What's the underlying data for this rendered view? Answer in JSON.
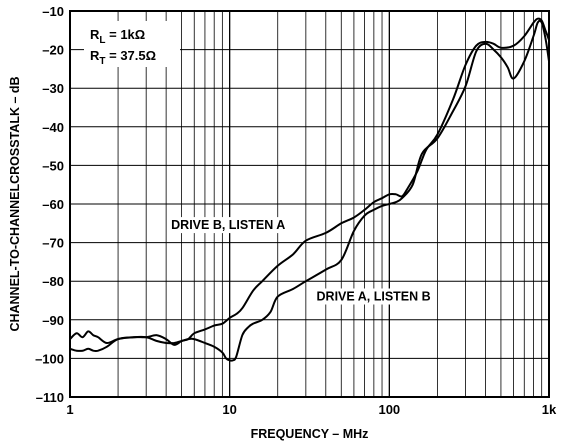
{
  "chart_data": {
    "type": "line",
    "title": "",
    "xlabel": "FREQUENCY – MHz",
    "ylabel": "CHANNEL-TO-CHANNELCROSSTALK – dB",
    "xscale": "log",
    "xlim": [
      1,
      1000
    ],
    "ylim": [
      -110,
      -10
    ],
    "grid": true,
    "x_ticks": [
      {
        "value": 1,
        "label": "1"
      },
      {
        "value": 10,
        "label": "10"
      },
      {
        "value": 100,
        "label": "100"
      },
      {
        "value": 1000,
        "label": "1k"
      }
    ],
    "y_ticks": [
      {
        "value": -10,
        "label": "–10"
      },
      {
        "value": -20,
        "label": "–20"
      },
      {
        "value": -30,
        "label": "–30"
      },
      {
        "value": -40,
        "label": "–40"
      },
      {
        "value": -50,
        "label": "–50"
      },
      {
        "value": -60,
        "label": "–60"
      },
      {
        "value": -70,
        "label": "–70"
      },
      {
        "value": -80,
        "label": "–80"
      },
      {
        "value": -90,
        "label": "–90"
      },
      {
        "value": -100,
        "label": "–100"
      },
      {
        "value": -110,
        "label": "–110"
      }
    ],
    "conditions": {
      "rl": {
        "sym": "R",
        "sub": "L",
        "rest": " = 1kΩ"
      },
      "rt": {
        "sym": "R",
        "sub": "T",
        "rest": " = 37.5Ω"
      }
    },
    "series": [
      {
        "name": "DRIVE B, LISTEN A",
        "x": [
          1,
          1.1,
          1.2,
          1.3,
          1.4,
          1.5,
          1.7,
          2,
          2.5,
          3,
          3.5,
          4,
          4.5,
          5,
          5.5,
          6,
          7,
          8,
          9,
          10,
          11,
          12,
          14,
          16,
          20,
          25,
          30,
          40,
          50,
          60,
          70,
          80,
          90,
          100,
          110,
          120,
          130,
          150,
          170,
          200,
          250,
          300,
          350,
          400,
          450,
          500,
          600,
          700,
          800,
          850,
          900,
          950,
          1000
        ],
        "y": [
          -95,
          -93.5,
          -94.5,
          -93,
          -94,
          -94.5,
          -96,
          -95,
          -94.5,
          -94.5,
          -94,
          -95,
          -96.5,
          -95.5,
          -95,
          -93.5,
          -92.5,
          -91.5,
          -91,
          -89.5,
          -88.5,
          -87,
          -82.5,
          -80,
          -76,
          -73,
          -69.5,
          -67.5,
          -65,
          -63.5,
          -61.5,
          -59.5,
          -58.5,
          -57.5,
          -57.5,
          -58,
          -56,
          -51.5,
          -46,
          -42,
          -33,
          -24,
          -19,
          -18,
          -18.5,
          -19.5,
          -19,
          -16.5,
          -13,
          -12,
          -12.5,
          -15,
          -17.5
        ]
      },
      {
        "name": "DRIVE A, LISTEN B",
        "x": [
          1,
          1.1,
          1.2,
          1.3,
          1.4,
          1.5,
          1.7,
          2,
          2.5,
          3,
          3.5,
          4,
          4.5,
          5,
          5.5,
          6,
          7,
          8,
          9,
          9.5,
          10,
          10.5,
          11,
          12,
          13,
          14,
          16,
          18,
          20,
          25,
          30,
          40,
          50,
          60,
          70,
          80,
          90,
          100,
          110,
          120,
          140,
          160,
          200,
          250,
          300,
          350,
          400,
          450,
          500,
          550,
          600,
          700,
          800,
          850,
          900,
          950,
          1000
        ],
        "y": [
          -97.5,
          -98,
          -98,
          -97.5,
          -98,
          -98,
          -97,
          -95,
          -94.5,
          -94.5,
          -95.5,
          -96,
          -96,
          -95.5,
          -95,
          -95,
          -96,
          -97,
          -98.5,
          -100,
          -100.5,
          -100.5,
          -99.5,
          -94,
          -92,
          -91,
          -90,
          -88,
          -84,
          -82,
          -80,
          -77,
          -74.5,
          -67,
          -63,
          -61.5,
          -60.5,
          -60,
          -59.5,
          -58.5,
          -55,
          -47,
          -43,
          -36,
          -29.5,
          -20.5,
          -18.5,
          -20,
          -22,
          -24.5,
          -27.5,
          -23,
          -16.5,
          -13,
          -13,
          -17,
          -23
        ]
      }
    ],
    "annotations": [
      {
        "text": "DRIVE B, LISTEN A",
        "x": 4.3,
        "y": -66.5,
        "series": 0
      },
      {
        "text": "DRIVE A, LISTEN B",
        "x": 35,
        "y": -85,
        "series": 1
      }
    ]
  }
}
